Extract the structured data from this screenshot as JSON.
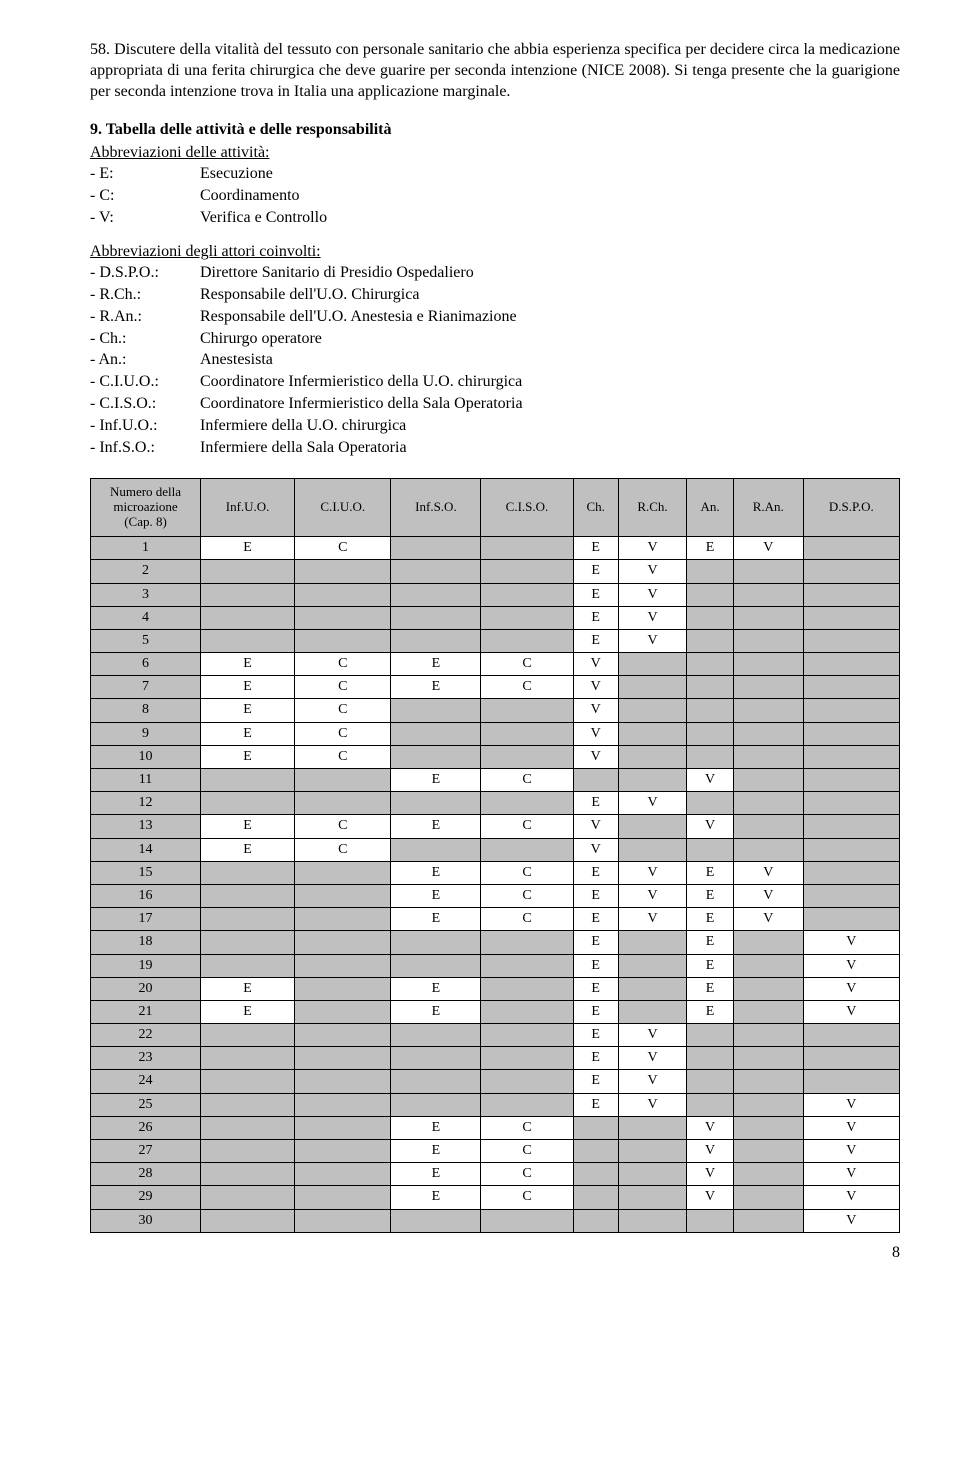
{
  "para58_num": "58.",
  "para58": "Discutere della vitalità del tessuto con personale sanitario che abbia esperienza specifica per decidere circa la medicazione appropriata di una ferita chirurgica che deve guarire per seconda intenzione (NICE 2008). Si tenga presente che la guarigione per seconda intenzione trova in Italia una applicazione marginale.",
  "section9": "9. Tabella delle attività e delle responsabilità",
  "abbrev_act_title": "Abbreviazioni delle attività:",
  "abbrev_act": [
    {
      "k": "- E:",
      "v": "Esecuzione"
    },
    {
      "k": "- C:",
      "v": "Coordinamento"
    },
    {
      "k": "- V:",
      "v": "Verifica e Controllo"
    }
  ],
  "abbrev_actor_title": "Abbreviazioni degli attori coinvolti:",
  "abbrev_actor": [
    {
      "k": "- D.S.P.O.:",
      "v": "Direttore Sanitario di Presidio Ospedaliero"
    },
    {
      "k": "- R.Ch.:",
      "v": "Responsabile dell'U.O. Chirurgica"
    },
    {
      "k": "- R.An.:",
      "v": "Responsabile dell'U.O. Anestesia e Rianimazione"
    },
    {
      "k": "- Ch.:",
      "v": "Chirurgo operatore"
    },
    {
      "k": "- An.:",
      "v": "Anestesista"
    },
    {
      "k": "- C.I.U.O.:",
      "v": "Coordinatore Infermieristico della U.O. chirurgica"
    },
    {
      "k": "- C.I.S.O.:",
      "v": "Coordinatore Infermieristico della Sala Operatoria"
    },
    {
      "k": "- Inf.U.O.:",
      "v": "Infermiere della U.O. chirurgica"
    },
    {
      "k": "- Inf.S.O.:",
      "v": "Infermiere della Sala Operatoria"
    }
  ],
  "table": {
    "columns": [
      "Numero della microazione (Cap. 8)",
      "Inf.U.O.",
      "C.I.U.O.",
      "Inf.S.O.",
      "C.I.S.O.",
      "Ch.",
      "R.Ch.",
      "An.",
      "R.An.",
      "D.S.P.O."
    ],
    "grey_color": "#c0c0c0",
    "rows": [
      {
        "n": "1",
        "c": [
          "E",
          "C",
          "",
          "",
          "E",
          "V",
          "E",
          "V",
          ""
        ]
      },
      {
        "n": "2",
        "c": [
          "",
          "",
          "",
          "",
          "E",
          "V",
          "",
          "",
          ""
        ]
      },
      {
        "n": "3",
        "c": [
          "",
          "",
          "",
          "",
          "E",
          "V",
          "",
          "",
          ""
        ]
      },
      {
        "n": "4",
        "c": [
          "",
          "",
          "",
          "",
          "E",
          "V",
          "",
          "",
          ""
        ]
      },
      {
        "n": "5",
        "c": [
          "",
          "",
          "",
          "",
          "E",
          "V",
          "",
          "",
          ""
        ]
      },
      {
        "n": "6",
        "c": [
          "E",
          "C",
          "E",
          "C",
          "V",
          "",
          "",
          "",
          ""
        ]
      },
      {
        "n": "7",
        "c": [
          "E",
          "C",
          "E",
          "C",
          "V",
          "",
          "",
          "",
          ""
        ]
      },
      {
        "n": "8",
        "c": [
          "E",
          "C",
          "",
          "",
          "V",
          "",
          "",
          "",
          ""
        ]
      },
      {
        "n": "9",
        "c": [
          "E",
          "C",
          "",
          "",
          "V",
          "",
          "",
          "",
          ""
        ]
      },
      {
        "n": "10",
        "c": [
          "E",
          "C",
          "",
          "",
          "V",
          "",
          "",
          "",
          ""
        ]
      },
      {
        "n": "11",
        "c": [
          "",
          "",
          "E",
          "C",
          "",
          "",
          "V",
          "",
          ""
        ]
      },
      {
        "n": "12",
        "c": [
          "",
          "",
          "",
          "",
          "E",
          "V",
          "",
          "",
          ""
        ]
      },
      {
        "n": "13",
        "c": [
          "E",
          "C",
          "E",
          "C",
          "V",
          "",
          "V",
          "",
          ""
        ]
      },
      {
        "n": "14",
        "c": [
          "E",
          "C",
          "",
          "",
          "V",
          "",
          "",
          "",
          ""
        ]
      },
      {
        "n": "15",
        "c": [
          "",
          "",
          "E",
          "C",
          "E",
          "V",
          "E",
          "V",
          ""
        ]
      },
      {
        "n": "16",
        "c": [
          "",
          "",
          "E",
          "C",
          "E",
          "V",
          "E",
          "V",
          ""
        ]
      },
      {
        "n": "17",
        "c": [
          "",
          "",
          "E",
          "C",
          "E",
          "V",
          "E",
          "V",
          ""
        ]
      },
      {
        "n": "18",
        "c": [
          "",
          "",
          "",
          "",
          "E",
          "",
          "E",
          "",
          "V"
        ]
      },
      {
        "n": "19",
        "c": [
          "",
          "",
          "",
          "",
          "E",
          "",
          "E",
          "",
          "V"
        ]
      },
      {
        "n": "20",
        "c": [
          "E",
          "",
          "E",
          "",
          "E",
          "",
          "E",
          "",
          "V"
        ]
      },
      {
        "n": "21",
        "c": [
          "E",
          "",
          "E",
          "",
          "E",
          "",
          "E",
          "",
          "V"
        ]
      },
      {
        "n": "22",
        "c": [
          "",
          "",
          "",
          "",
          "E",
          "V",
          "",
          "",
          ""
        ]
      },
      {
        "n": "23",
        "c": [
          "",
          "",
          "",
          "",
          "E",
          "V",
          "",
          "",
          ""
        ]
      },
      {
        "n": "24",
        "c": [
          "",
          "",
          "",
          "",
          "E",
          "V",
          "",
          "",
          ""
        ]
      },
      {
        "n": "25",
        "c": [
          "",
          "",
          "",
          "",
          "E",
          "V",
          "",
          "",
          "V"
        ]
      },
      {
        "n": "26",
        "c": [
          "",
          "",
          "E",
          "C",
          "",
          "",
          "V",
          "",
          "V"
        ]
      },
      {
        "n": "27",
        "c": [
          "",
          "",
          "E",
          "C",
          "",
          "",
          "V",
          "",
          "V"
        ]
      },
      {
        "n": "28",
        "c": [
          "",
          "",
          "E",
          "C",
          "",
          "",
          "V",
          "",
          "V"
        ]
      },
      {
        "n": "29",
        "c": [
          "",
          "",
          "E",
          "C",
          "",
          "",
          "V",
          "",
          "V"
        ]
      },
      {
        "n": "30",
        "c": [
          "",
          "",
          "",
          "",
          "",
          "",
          "",
          "",
          "V"
        ]
      }
    ]
  },
  "page_number": "8"
}
